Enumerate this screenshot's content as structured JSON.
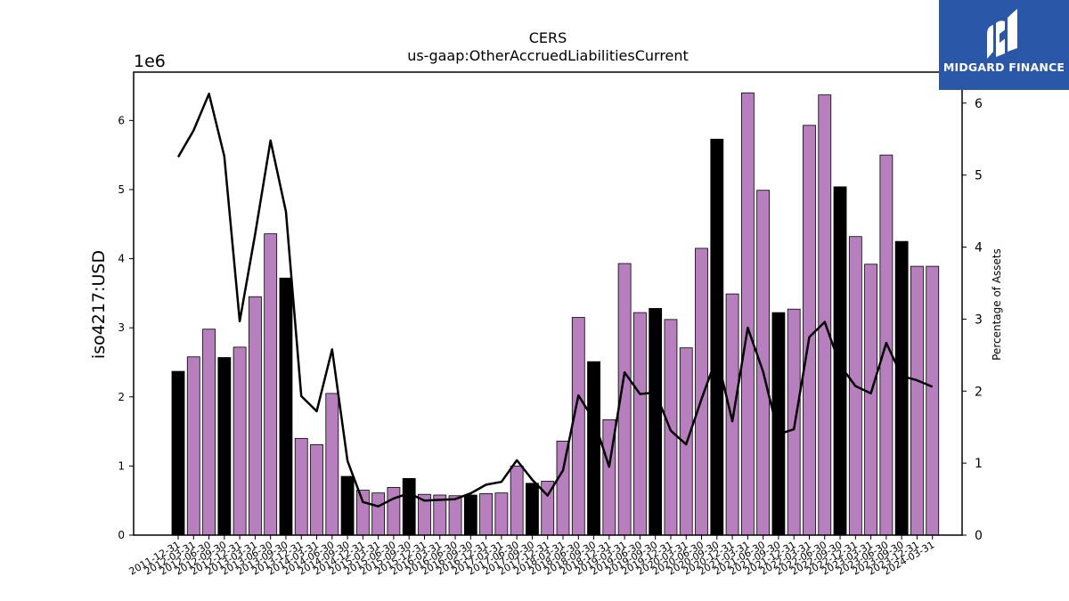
{
  "chart_data": {
    "type": "bar",
    "title": "CERS",
    "subtitle": "us-gaap:OtherAccruedLiabilitiesCurrent",
    "ylabel": "iso4217:USD",
    "y_offset_label": "1e6",
    "y2label": "Percentage of Assets",
    "ylim": [
      0,
      6700000
    ],
    "y2lim": [
      0,
      6.43
    ],
    "yticks": [
      "0",
      "1",
      "2",
      "3",
      "4",
      "5",
      "6"
    ],
    "y2ticks": [
      "0",
      "1",
      "2",
      "3",
      "4",
      "5",
      "6"
    ],
    "colors": {
      "annual": "#000000",
      "quarterly": "#b77fbd",
      "line": "#000000"
    },
    "categories": [
      "2011-12-31",
      "2012-03-31",
      "2012-06-30",
      "2012-09-30",
      "2012-12-31",
      "2013-03-31",
      "2013-06-30",
      "2013-09-30",
      "2013-12-31",
      "2014-03-31",
      "2014-06-30",
      "2014-09-30",
      "2014-12-31",
      "2015-03-31",
      "2015-06-30",
      "2015-09-30",
      "2015-12-31",
      "2016-03-31",
      "2016-06-30",
      "2016-09-30",
      "2016-12-31",
      "2017-03-31",
      "2017-06-30",
      "2017-09-30",
      "2017-12-31",
      "2018-03-31",
      "2018-06-30",
      "2018-09-30",
      "2018-12-31",
      "2019-03-31",
      "2019-06-30",
      "2019-09-30",
      "2019-12-31",
      "2020-03-31",
      "2020-06-30",
      "2020-09-30",
      "2020-12-31",
      "2021-03-31",
      "2021-06-30",
      "2021-09-30",
      "2021-12-31",
      "2022-03-31",
      "2022-06-30",
      "2022-09-30",
      "2022-12-31",
      "2023-03-31",
      "2023-06-30",
      "2023-09-30",
      "2023-12-31",
      "2024-03-31"
    ],
    "series": [
      {
        "type": "bar",
        "values": [
          2370000,
          2580000,
          2980000,
          2570000,
          2720000,
          3450000,
          4360000,
          3720000,
          1400000,
          1310000,
          2050000,
          850000,
          650000,
          610000,
          690000,
          820000,
          590000,
          580000,
          570000,
          580000,
          600000,
          610000,
          1000000,
          750000,
          780000,
          1360000,
          3150000,
          2510000,
          1670000,
          3930000,
          3220000,
          3280000,
          3120000,
          2710000,
          4150000,
          5730000,
          3490000,
          6400000,
          4990000,
          3220000,
          3270000,
          5930000,
          6370000,
          5040000,
          4320000,
          3920000,
          5500000,
          4250000,
          3890000,
          3890000
        ],
        "annual": [
          true,
          false,
          false,
          true,
          false,
          false,
          false,
          true,
          false,
          false,
          false,
          true,
          false,
          false,
          false,
          true,
          false,
          false,
          false,
          true,
          false,
          false,
          false,
          true,
          false,
          false,
          false,
          true,
          false,
          false,
          false,
          true,
          false,
          false,
          false,
          true,
          false,
          false,
          false,
          true,
          false,
          false,
          false,
          true,
          false,
          false,
          false,
          true,
          false,
          false
        ]
      },
      {
        "type": "line",
        "values": [
          5.25,
          5.62,
          6.13,
          5.26,
          2.97,
          4.18,
          5.48,
          4.49,
          1.93,
          1.72,
          2.58,
          1.03,
          0.46,
          0.4,
          0.51,
          0.58,
          0.48,
          0.49,
          0.5,
          0.58,
          0.7,
          0.74,
          1.04,
          0.77,
          0.55,
          0.9,
          1.94,
          1.6,
          0.95,
          2.26,
          1.96,
          1.98,
          1.45,
          1.26,
          1.89,
          2.48,
          1.58,
          2.88,
          2.27,
          1.4,
          1.47,
          2.75,
          2.96,
          2.36,
          2.07,
          1.97,
          2.67,
          2.21,
          2.15,
          2.06
        ]
      }
    ]
  },
  "branding": {
    "logo_text": "MIDGARD FINANCE",
    "logo_icon": "midgard-logo-icon"
  }
}
